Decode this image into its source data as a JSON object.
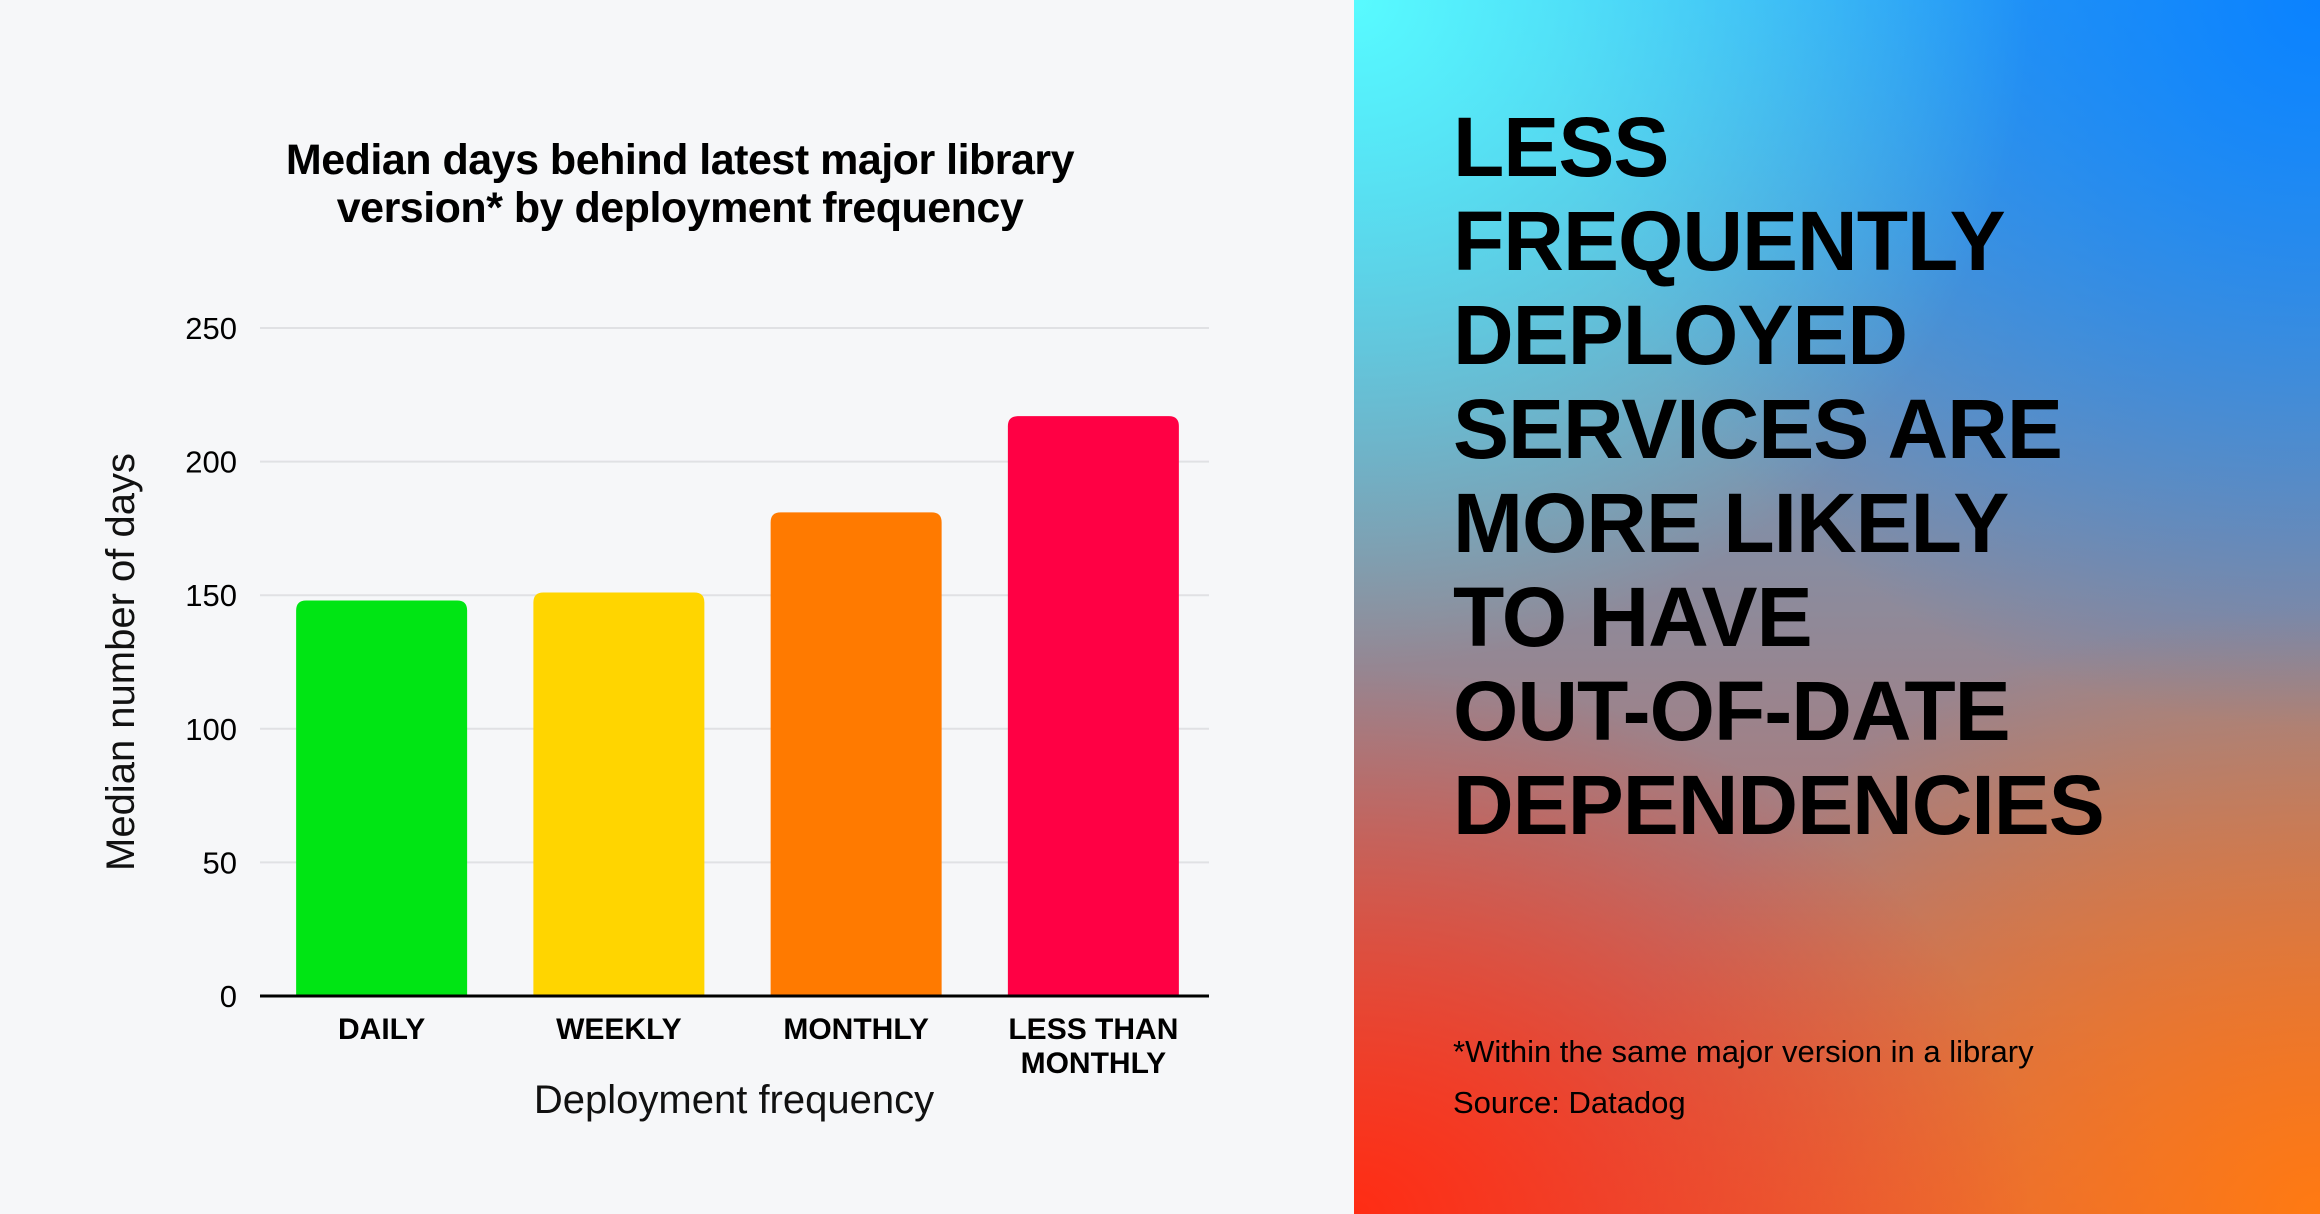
{
  "chart_data": {
    "type": "bar",
    "title": "Median days behind latest major library version* by deployment frequency",
    "title_lines": [
      "Median days behind latest major library",
      "version* by deployment frequency"
    ],
    "categories": [
      "DAILY",
      "WEEKLY",
      "MONTHLY",
      "LESS THAN MONTHLY"
    ],
    "category_lines": [
      [
        "DAILY"
      ],
      [
        "WEEKLY"
      ],
      [
        "MONTHLY"
      ],
      [
        "LESS THAN",
        "MONTHLY"
      ]
    ],
    "values": [
      148,
      151,
      181,
      217
    ],
    "colors": [
      "#00e514",
      "#ffd500",
      "#ff7a00",
      "#ff0044"
    ],
    "xlabel": "Deployment frequency",
    "ylabel": "Median number of days",
    "ylim": [
      0,
      250
    ],
    "yticks": [
      0,
      50,
      100,
      150,
      200,
      250
    ],
    "grid": true
  },
  "headline": [
    "LESS",
    "FREQUENTLY",
    "DEPLOYED",
    "SERVICES ARE",
    "MORE LIKELY",
    "TO HAVE",
    "OUT-OF-DATE",
    "DEPENDENCIES"
  ],
  "footnote": "*Within the same major version in a library",
  "source": "Source: Datadog",
  "colors": {
    "left_background": "#f6f7f9",
    "gradient": [
      "#58fbff",
      "#0a82ff",
      "#ff2c14",
      "#ff7a12"
    ]
  }
}
